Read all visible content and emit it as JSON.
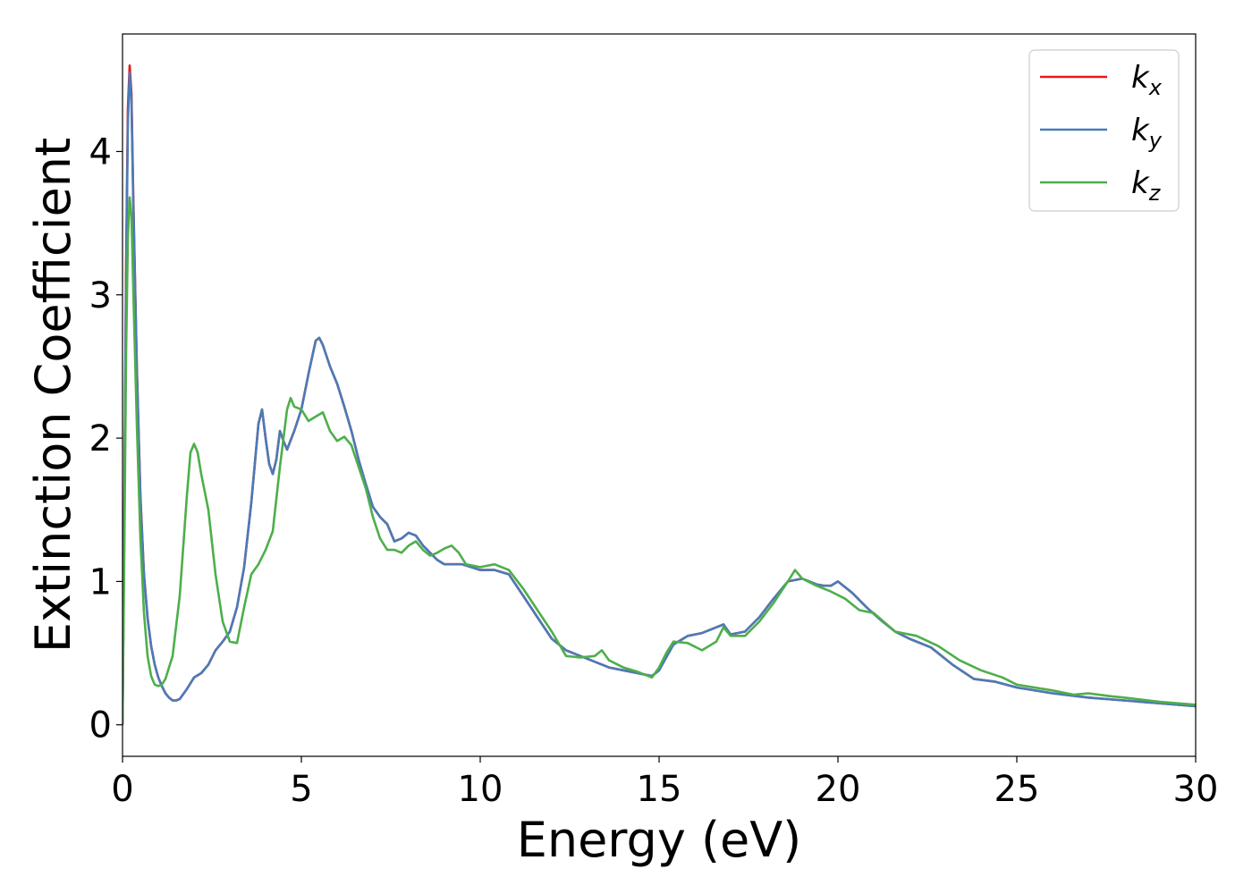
{
  "chart_data": {
    "type": "line",
    "xlabel": "Energy (eV)",
    "ylabel": "Extinction Coefficient",
    "xlim": [
      0,
      30
    ],
    "ylim": [
      -0.22,
      4.82
    ],
    "xticks": [
      "0",
      "5",
      "10",
      "15",
      "20",
      "25",
      "30"
    ],
    "yticks": [
      "0",
      "1",
      "2",
      "3",
      "4"
    ],
    "grid": false,
    "legend_position": "top-right",
    "series": [
      {
        "name": "k_x",
        "legend_main": "k",
        "legend_sub": "x",
        "color": "#e41a1c",
        "x": [
          0,
          0.05,
          0.1,
          0.15,
          0.2,
          0.25,
          0.3,
          0.4,
          0.5,
          0.6,
          0.7,
          0.8,
          0.9,
          1.0,
          1.1,
          1.2,
          1.3,
          1.4,
          1.5,
          1.6,
          1.8,
          2.0,
          2.2,
          2.4,
          2.6,
          2.8,
          3.0,
          3.2,
          3.4,
          3.6,
          3.8,
          3.9,
          4.0,
          4.1,
          4.2,
          4.3,
          4.4,
          4.5,
          4.6,
          4.8,
          5.0,
          5.2,
          5.4,
          5.5,
          5.6,
          5.8,
          6.0,
          6.2,
          6.4,
          6.6,
          6.8,
          7.0,
          7.2,
          7.4,
          7.6,
          7.8,
          8.0,
          8.2,
          8.4,
          8.6,
          8.8,
          9.0,
          9.5,
          10.0,
          10.4,
          10.8,
          11.2,
          11.6,
          12.0,
          12.4,
          12.8,
          13.2,
          13.6,
          14.0,
          14.4,
          14.8,
          15.0,
          15.2,
          15.4,
          15.8,
          16.2,
          16.6,
          16.8,
          17.0,
          17.4,
          17.8,
          18.2,
          18.6,
          19.0,
          19.4,
          19.6,
          19.8,
          20.0,
          20.4,
          20.8,
          21.2,
          21.6,
          22.0,
          22.6,
          23.2,
          23.8,
          24.4,
          25.0,
          26.0,
          27.0,
          28.0,
          29.0,
          30.0
        ],
        "y": [
          0,
          1.5,
          3.2,
          4.3,
          4.6,
          4.4,
          3.7,
          2.5,
          1.6,
          1.05,
          0.75,
          0.55,
          0.42,
          0.33,
          0.27,
          0.22,
          0.19,
          0.17,
          0.17,
          0.18,
          0.25,
          0.33,
          0.36,
          0.42,
          0.52,
          0.58,
          0.65,
          0.82,
          1.1,
          1.55,
          2.1,
          2.2,
          2.0,
          1.82,
          1.75,
          1.85,
          2.05,
          1.98,
          1.92,
          2.05,
          2.2,
          2.45,
          2.68,
          2.7,
          2.65,
          2.5,
          2.38,
          2.22,
          2.05,
          1.85,
          1.68,
          1.52,
          1.45,
          1.4,
          1.28,
          1.3,
          1.34,
          1.32,
          1.25,
          1.2,
          1.15,
          1.12,
          1.12,
          1.08,
          1.08,
          1.05,
          0.9,
          0.75,
          0.6,
          0.52,
          0.48,
          0.44,
          0.4,
          0.38,
          0.36,
          0.34,
          0.38,
          0.47,
          0.56,
          0.62,
          0.64,
          0.68,
          0.7,
          0.63,
          0.65,
          0.75,
          0.88,
          1.0,
          1.02,
          0.98,
          0.97,
          0.97,
          1.0,
          0.92,
          0.82,
          0.73,
          0.65,
          0.6,
          0.54,
          0.42,
          0.32,
          0.3,
          0.26,
          0.22,
          0.19,
          0.17,
          0.15,
          0.13
        ]
      },
      {
        "name": "k_y",
        "legend_main": "k",
        "legend_sub": "y",
        "color": "#4a7bb7",
        "x": [
          0,
          0.05,
          0.1,
          0.15,
          0.2,
          0.25,
          0.3,
          0.4,
          0.5,
          0.6,
          0.7,
          0.8,
          0.9,
          1.0,
          1.1,
          1.2,
          1.3,
          1.4,
          1.5,
          1.6,
          1.8,
          2.0,
          2.2,
          2.4,
          2.6,
          2.8,
          3.0,
          3.2,
          3.4,
          3.6,
          3.8,
          3.9,
          4.0,
          4.1,
          4.2,
          4.3,
          4.4,
          4.5,
          4.6,
          4.8,
          5.0,
          5.2,
          5.4,
          5.5,
          5.6,
          5.8,
          6.0,
          6.2,
          6.4,
          6.6,
          6.8,
          7.0,
          7.2,
          7.4,
          7.6,
          7.8,
          8.0,
          8.2,
          8.4,
          8.6,
          8.8,
          9.0,
          9.5,
          10.0,
          10.4,
          10.8,
          11.2,
          11.6,
          12.0,
          12.4,
          12.8,
          13.2,
          13.6,
          14.0,
          14.4,
          14.8,
          15.0,
          15.2,
          15.4,
          15.8,
          16.2,
          16.6,
          16.8,
          17.0,
          17.4,
          17.8,
          18.2,
          18.6,
          19.0,
          19.4,
          19.6,
          19.8,
          20.0,
          20.4,
          20.8,
          21.2,
          21.6,
          22.0,
          22.6,
          23.2,
          23.8,
          24.4,
          25.0,
          26.0,
          27.0,
          28.0,
          29.0,
          30.0
        ],
        "y": [
          0,
          1.45,
          3.1,
          4.2,
          4.55,
          4.35,
          3.65,
          2.48,
          1.58,
          1.04,
          0.74,
          0.55,
          0.42,
          0.33,
          0.27,
          0.22,
          0.19,
          0.17,
          0.17,
          0.18,
          0.25,
          0.33,
          0.36,
          0.42,
          0.52,
          0.58,
          0.65,
          0.82,
          1.1,
          1.55,
          2.1,
          2.2,
          2.0,
          1.82,
          1.75,
          1.85,
          2.05,
          1.98,
          1.92,
          2.05,
          2.2,
          2.45,
          2.68,
          2.7,
          2.65,
          2.5,
          2.38,
          2.22,
          2.05,
          1.85,
          1.68,
          1.52,
          1.45,
          1.4,
          1.28,
          1.3,
          1.34,
          1.32,
          1.25,
          1.2,
          1.15,
          1.12,
          1.12,
          1.08,
          1.08,
          1.05,
          0.9,
          0.75,
          0.6,
          0.52,
          0.48,
          0.44,
          0.4,
          0.38,
          0.36,
          0.34,
          0.38,
          0.47,
          0.56,
          0.62,
          0.64,
          0.68,
          0.7,
          0.63,
          0.65,
          0.75,
          0.88,
          1.0,
          1.02,
          0.98,
          0.97,
          0.97,
          1.0,
          0.92,
          0.82,
          0.73,
          0.65,
          0.6,
          0.54,
          0.42,
          0.32,
          0.3,
          0.26,
          0.22,
          0.19,
          0.17,
          0.15,
          0.13
        ]
      },
      {
        "name": "k_z",
        "legend_main": "k",
        "legend_sub": "z",
        "color": "#4daf4a",
        "x": [
          0,
          0.05,
          0.1,
          0.15,
          0.2,
          0.25,
          0.3,
          0.4,
          0.5,
          0.6,
          0.7,
          0.8,
          0.9,
          1.0,
          1.1,
          1.2,
          1.4,
          1.6,
          1.8,
          1.9,
          2.0,
          2.1,
          2.2,
          2.4,
          2.6,
          2.8,
          3.0,
          3.2,
          3.4,
          3.6,
          3.8,
          4.0,
          4.2,
          4.4,
          4.6,
          4.7,
          4.8,
          5.0,
          5.2,
          5.4,
          5.6,
          5.8,
          6.0,
          6.2,
          6.4,
          6.6,
          6.8,
          7.0,
          7.2,
          7.4,
          7.6,
          7.8,
          8.0,
          8.2,
          8.4,
          8.6,
          8.8,
          9.0,
          9.2,
          9.4,
          9.6,
          10.0,
          10.4,
          10.8,
          11.2,
          11.6,
          12.0,
          12.4,
          12.8,
          13.2,
          13.4,
          13.6,
          14.0,
          14.4,
          14.8,
          15.0,
          15.2,
          15.4,
          15.8,
          16.2,
          16.6,
          16.8,
          17.0,
          17.4,
          17.8,
          18.2,
          18.6,
          18.8,
          19.0,
          19.4,
          19.8,
          20.2,
          20.6,
          21.0,
          21.6,
          22.2,
          22.8,
          23.4,
          24.0,
          24.6,
          25.0,
          26.0,
          26.6,
          27.0,
          27.6,
          28.0,
          29.0,
          30.0
        ],
        "y": [
          0,
          1.2,
          2.6,
          3.4,
          3.68,
          3.55,
          3.05,
          2.1,
          1.3,
          0.78,
          0.48,
          0.34,
          0.28,
          0.27,
          0.28,
          0.32,
          0.48,
          0.9,
          1.6,
          1.9,
          1.96,
          1.9,
          1.75,
          1.5,
          1.05,
          0.72,
          0.58,
          0.57,
          0.82,
          1.05,
          1.12,
          1.22,
          1.35,
          1.8,
          2.2,
          2.28,
          2.22,
          2.2,
          2.12,
          2.15,
          2.18,
          2.05,
          1.98,
          2.01,
          1.95,
          1.8,
          1.65,
          1.45,
          1.3,
          1.22,
          1.22,
          1.2,
          1.25,
          1.28,
          1.22,
          1.18,
          1.2,
          1.23,
          1.25,
          1.2,
          1.12,
          1.1,
          1.12,
          1.08,
          0.95,
          0.8,
          0.65,
          0.48,
          0.47,
          0.48,
          0.52,
          0.45,
          0.4,
          0.37,
          0.33,
          0.4,
          0.5,
          0.58,
          0.57,
          0.52,
          0.58,
          0.68,
          0.62,
          0.62,
          0.72,
          0.85,
          1.0,
          1.08,
          1.02,
          0.97,
          0.93,
          0.88,
          0.8,
          0.78,
          0.65,
          0.62,
          0.55,
          0.45,
          0.38,
          0.33,
          0.28,
          0.24,
          0.21,
          0.22,
          0.2,
          0.19,
          0.16,
          0.14
        ]
      }
    ]
  }
}
